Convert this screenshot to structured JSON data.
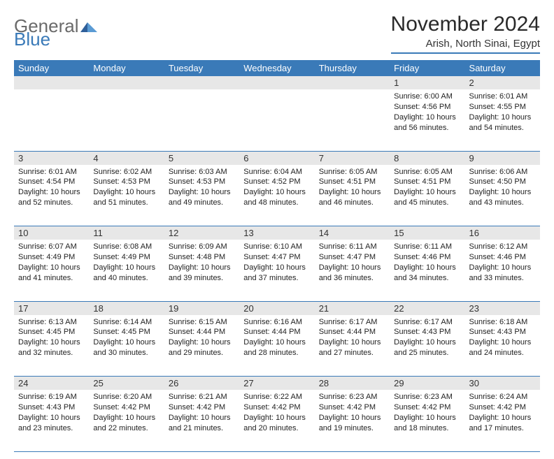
{
  "logo": {
    "part1": "General",
    "part2": "Blue"
  },
  "title": "November 2024",
  "location": "Arish, North Sinai, Egypt",
  "colors": {
    "header_bg": "#3a7ab8",
    "header_fg": "#ffffff",
    "daynum_bg": "#e7e7e7",
    "border": "#3a7ab8",
    "text": "#222222",
    "logo_gray": "#6a6a6a",
    "logo_blue": "#3a7ab8"
  },
  "weekdays": [
    "Sunday",
    "Monday",
    "Tuesday",
    "Wednesday",
    "Thursday",
    "Friday",
    "Saturday"
  ],
  "weeks": [
    {
      "nums": [
        "",
        "",
        "",
        "",
        "",
        "1",
        "2"
      ],
      "cells": [
        null,
        null,
        null,
        null,
        null,
        {
          "sunrise": "Sunrise: 6:00 AM",
          "sunset": "Sunset: 4:56 PM",
          "day1": "Daylight: 10 hours",
          "day2": "and 56 minutes."
        },
        {
          "sunrise": "Sunrise: 6:01 AM",
          "sunset": "Sunset: 4:55 PM",
          "day1": "Daylight: 10 hours",
          "day2": "and 54 minutes."
        }
      ]
    },
    {
      "nums": [
        "3",
        "4",
        "5",
        "6",
        "7",
        "8",
        "9"
      ],
      "cells": [
        {
          "sunrise": "Sunrise: 6:01 AM",
          "sunset": "Sunset: 4:54 PM",
          "day1": "Daylight: 10 hours",
          "day2": "and 52 minutes."
        },
        {
          "sunrise": "Sunrise: 6:02 AM",
          "sunset": "Sunset: 4:53 PM",
          "day1": "Daylight: 10 hours",
          "day2": "and 51 minutes."
        },
        {
          "sunrise": "Sunrise: 6:03 AM",
          "sunset": "Sunset: 4:53 PM",
          "day1": "Daylight: 10 hours",
          "day2": "and 49 minutes."
        },
        {
          "sunrise": "Sunrise: 6:04 AM",
          "sunset": "Sunset: 4:52 PM",
          "day1": "Daylight: 10 hours",
          "day2": "and 48 minutes."
        },
        {
          "sunrise": "Sunrise: 6:05 AM",
          "sunset": "Sunset: 4:51 PM",
          "day1": "Daylight: 10 hours",
          "day2": "and 46 minutes."
        },
        {
          "sunrise": "Sunrise: 6:05 AM",
          "sunset": "Sunset: 4:51 PM",
          "day1": "Daylight: 10 hours",
          "day2": "and 45 minutes."
        },
        {
          "sunrise": "Sunrise: 6:06 AM",
          "sunset": "Sunset: 4:50 PM",
          "day1": "Daylight: 10 hours",
          "day2": "and 43 minutes."
        }
      ]
    },
    {
      "nums": [
        "10",
        "11",
        "12",
        "13",
        "14",
        "15",
        "16"
      ],
      "cells": [
        {
          "sunrise": "Sunrise: 6:07 AM",
          "sunset": "Sunset: 4:49 PM",
          "day1": "Daylight: 10 hours",
          "day2": "and 41 minutes."
        },
        {
          "sunrise": "Sunrise: 6:08 AM",
          "sunset": "Sunset: 4:49 PM",
          "day1": "Daylight: 10 hours",
          "day2": "and 40 minutes."
        },
        {
          "sunrise": "Sunrise: 6:09 AM",
          "sunset": "Sunset: 4:48 PM",
          "day1": "Daylight: 10 hours",
          "day2": "and 39 minutes."
        },
        {
          "sunrise": "Sunrise: 6:10 AM",
          "sunset": "Sunset: 4:47 PM",
          "day1": "Daylight: 10 hours",
          "day2": "and 37 minutes."
        },
        {
          "sunrise": "Sunrise: 6:11 AM",
          "sunset": "Sunset: 4:47 PM",
          "day1": "Daylight: 10 hours",
          "day2": "and 36 minutes."
        },
        {
          "sunrise": "Sunrise: 6:11 AM",
          "sunset": "Sunset: 4:46 PM",
          "day1": "Daylight: 10 hours",
          "day2": "and 34 minutes."
        },
        {
          "sunrise": "Sunrise: 6:12 AM",
          "sunset": "Sunset: 4:46 PM",
          "day1": "Daylight: 10 hours",
          "day2": "and 33 minutes."
        }
      ]
    },
    {
      "nums": [
        "17",
        "18",
        "19",
        "20",
        "21",
        "22",
        "23"
      ],
      "cells": [
        {
          "sunrise": "Sunrise: 6:13 AM",
          "sunset": "Sunset: 4:45 PM",
          "day1": "Daylight: 10 hours",
          "day2": "and 32 minutes."
        },
        {
          "sunrise": "Sunrise: 6:14 AM",
          "sunset": "Sunset: 4:45 PM",
          "day1": "Daylight: 10 hours",
          "day2": "and 30 minutes."
        },
        {
          "sunrise": "Sunrise: 6:15 AM",
          "sunset": "Sunset: 4:44 PM",
          "day1": "Daylight: 10 hours",
          "day2": "and 29 minutes."
        },
        {
          "sunrise": "Sunrise: 6:16 AM",
          "sunset": "Sunset: 4:44 PM",
          "day1": "Daylight: 10 hours",
          "day2": "and 28 minutes."
        },
        {
          "sunrise": "Sunrise: 6:17 AM",
          "sunset": "Sunset: 4:44 PM",
          "day1": "Daylight: 10 hours",
          "day2": "and 27 minutes."
        },
        {
          "sunrise": "Sunrise: 6:17 AM",
          "sunset": "Sunset: 4:43 PM",
          "day1": "Daylight: 10 hours",
          "day2": "and 25 minutes."
        },
        {
          "sunrise": "Sunrise: 6:18 AM",
          "sunset": "Sunset: 4:43 PM",
          "day1": "Daylight: 10 hours",
          "day2": "and 24 minutes."
        }
      ]
    },
    {
      "nums": [
        "24",
        "25",
        "26",
        "27",
        "28",
        "29",
        "30"
      ],
      "cells": [
        {
          "sunrise": "Sunrise: 6:19 AM",
          "sunset": "Sunset: 4:43 PM",
          "day1": "Daylight: 10 hours",
          "day2": "and 23 minutes."
        },
        {
          "sunrise": "Sunrise: 6:20 AM",
          "sunset": "Sunset: 4:42 PM",
          "day1": "Daylight: 10 hours",
          "day2": "and 22 minutes."
        },
        {
          "sunrise": "Sunrise: 6:21 AM",
          "sunset": "Sunset: 4:42 PM",
          "day1": "Daylight: 10 hours",
          "day2": "and 21 minutes."
        },
        {
          "sunrise": "Sunrise: 6:22 AM",
          "sunset": "Sunset: 4:42 PM",
          "day1": "Daylight: 10 hours",
          "day2": "and 20 minutes."
        },
        {
          "sunrise": "Sunrise: 6:23 AM",
          "sunset": "Sunset: 4:42 PM",
          "day1": "Daylight: 10 hours",
          "day2": "and 19 minutes."
        },
        {
          "sunrise": "Sunrise: 6:23 AM",
          "sunset": "Sunset: 4:42 PM",
          "day1": "Daylight: 10 hours",
          "day2": "and 18 minutes."
        },
        {
          "sunrise": "Sunrise: 6:24 AM",
          "sunset": "Sunset: 4:42 PM",
          "day1": "Daylight: 10 hours",
          "day2": "and 17 minutes."
        }
      ]
    }
  ]
}
